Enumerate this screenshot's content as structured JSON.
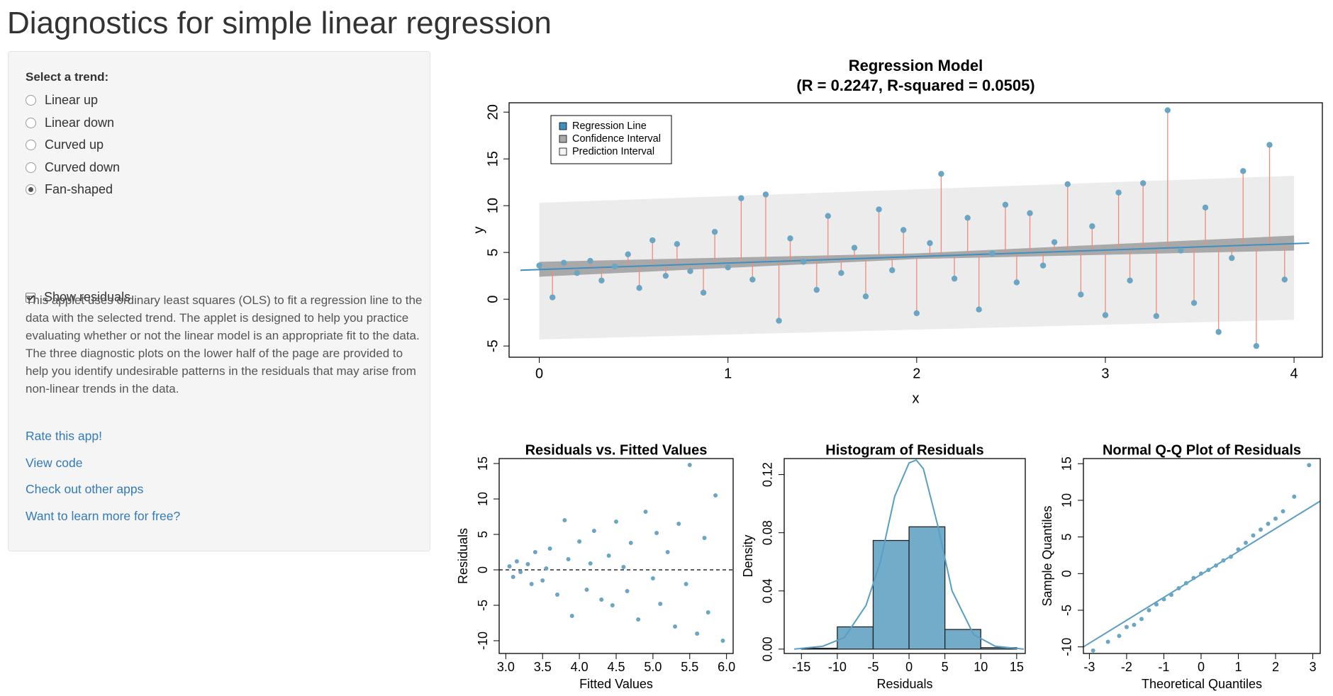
{
  "page": {
    "title": "Diagnostics for simple linear regression",
    "trend_label": "Select a trend:",
    "trends": [
      "Linear up",
      "Linear down",
      "Curved up",
      "Curved down",
      "Fan-shaped"
    ],
    "selected_trend": 4,
    "show_residuals_label": "Show residuals",
    "show_residuals": true,
    "description": "This applet uses ordinary least squares (OLS) to fit a regression line to the data with the selected trend. The applet is designed to help you practice evaluating whether or not the linear model is an appropriate fit to the data. The three diagnostic plots on the lower half of the page are provided to help you identify undesirable patterns in the residuals that may arise from non-linear trends in the data.",
    "links": [
      "Rate this app!",
      "View code",
      "Check out other apps",
      "Want to learn more for free?"
    ]
  },
  "chart_data": [
    {
      "type": "scatter",
      "title": "Regression Model",
      "subtitle": "(R = 0.2247, R-squared = 0.0505)",
      "xlabel": "x",
      "ylabel": "y",
      "xlim": [
        -0.16,
        4.15
      ],
      "ylim": [
        -6.2,
        21
      ],
      "xticks": [
        0,
        1,
        2,
        3,
        4
      ],
      "yticks": [
        -5,
        0,
        5,
        10,
        15,
        20
      ],
      "color": "#6aa6c4",
      "residual_color": "#f08a7a",
      "show_residuals": true,
      "x": [
        0.0,
        0.07,
        0.13,
        0.2,
        0.27,
        0.33,
        0.4,
        0.47,
        0.53,
        0.6,
        0.67,
        0.73,
        0.8,
        0.87,
        0.93,
        1.0,
        1.07,
        1.13,
        1.2,
        1.27,
        1.33,
        1.4,
        1.47,
        1.53,
        1.6,
        1.67,
        1.73,
        1.8,
        1.87,
        1.93,
        2.0,
        2.07,
        2.13,
        2.2,
        2.27,
        2.33,
        2.4,
        2.47,
        2.53,
        2.6,
        2.67,
        2.73,
        2.8,
        2.87,
        2.93,
        3.0,
        3.07,
        3.13,
        3.2,
        3.27,
        3.33,
        3.4,
        3.47,
        3.53,
        3.6,
        3.67,
        3.73,
        3.8,
        3.87,
        3.95
      ],
      "values": [
        3.6,
        0.2,
        3.9,
        2.8,
        4.1,
        2.0,
        3.5,
        4.8,
        1.2,
        6.3,
        2.5,
        5.9,
        3.0,
        0.7,
        7.2,
        3.4,
        10.8,
        2.1,
        11.2,
        -2.3,
        6.5,
        4.0,
        1.0,
        8.9,
        2.8,
        5.5,
        0.3,
        9.6,
        3.1,
        7.4,
        -1.5,
        6.0,
        13.4,
        2.2,
        8.7,
        -1.1,
        4.9,
        10.1,
        1.8,
        9.2,
        3.6,
        6.1,
        12.3,
        0.5,
        7.8,
        -1.7,
        11.4,
        2.0,
        12.4,
        -1.8,
        20.2,
        5.2,
        -0.4,
        9.8,
        -3.5,
        4.4,
        13.7,
        -5.0,
        16.5,
        2.1
      ],
      "line": {
        "color": "#3f8fbf",
        "x": [
          -0.1,
          4.08
        ],
        "y": [
          3.1,
          6.0
        ]
      },
      "confidence_band": {
        "color": "#a9a9a9",
        "x": [
          0,
          2,
          4
        ],
        "lower": [
          2.4,
          4.3,
          5.2
        ],
        "upper": [
          4.0,
          4.9,
          6.8
        ]
      },
      "prediction_band": {
        "color": "#ececec",
        "x": [
          0,
          4
        ],
        "lower": [
          -4.3,
          -2.2
        ],
        "upper": [
          10.3,
          13.2
        ]
      },
      "legend": [
        {
          "label": "Regression Line",
          "color": "#3f8fbf"
        },
        {
          "label": "Confidence Interval",
          "color": "#a9a9a9"
        },
        {
          "label": "Prediction Interval",
          "color": "#f4f4f4"
        }
      ]
    },
    {
      "type": "scatter",
      "title": "Residuals vs. Fitted Values",
      "xlabel": "Fitted Values",
      "ylabel": "Residuals",
      "xlim": [
        2.91,
        6.09
      ],
      "ylim": [
        -11.8,
        15.7
      ],
      "xticks": [
        {
          "value": 3,
          "label": "3.0"
        },
        3.5,
        {
          "value": 4,
          "label": "4.0"
        },
        4.5,
        {
          "value": 5,
          "label": "5.0"
        },
        5.5,
        {
          "value": 6,
          "label": "6.0"
        }
      ],
      "yticks": [
        -10,
        -5,
        0,
        5,
        10,
        15
      ],
      "color": "#6aa6c4",
      "hline": 0,
      "x": [
        3.05,
        3.1,
        3.15,
        3.2,
        3.3,
        3.35,
        3.4,
        3.5,
        3.55,
        3.6,
        3.7,
        3.8,
        3.85,
        3.9,
        4.0,
        4.1,
        4.15,
        4.2,
        4.3,
        4.4,
        4.45,
        4.5,
        4.6,
        4.65,
        4.7,
        4.8,
        4.9,
        5.0,
        5.05,
        5.1,
        5.2,
        5.3,
        5.35,
        5.45,
        5.5,
        5.6,
        5.7,
        5.75,
        5.85,
        5.95
      ],
      "values": [
        0.5,
        -1.0,
        1.2,
        -0.3,
        0.8,
        -2.0,
        2.5,
        -1.5,
        0.2,
        3.0,
        -3.5,
        7.0,
        1.5,
        -6.5,
        4.0,
        -2.8,
        0.9,
        5.5,
        -4.2,
        2.0,
        -5.0,
        6.8,
        0.4,
        -3.0,
        3.8,
        -7.0,
        8.2,
        -1.2,
        5.2,
        -4.8,
        2.5,
        -8.0,
        6.5,
        -2.0,
        14.8,
        -9.0,
        4.5,
        -6.0,
        10.5,
        -10.0
      ]
    },
    {
      "type": "histogram",
      "title": "Histogram of Residuals",
      "xlabel": "Residuals",
      "ylabel": "Density",
      "xlim": [
        -17.4,
        16.2
      ],
      "ylim": [
        -0.003,
        0.131
      ],
      "xticks": [
        -15,
        -10,
        -5,
        0,
        5,
        10,
        15
      ],
      "yticks": [
        {
          "value": 0,
          "label": "0.00"
        },
        0.04,
        0.08,
        0.12
      ],
      "color": "#73acc8",
      "bins": [
        -15,
        -10,
        -5,
        0,
        5,
        10,
        15
      ],
      "values": [
        0.0006,
        0.0153,
        0.0747,
        0.0841,
        0.0135,
        0.001
      ],
      "density": {
        "color": "#5a9ec4",
        "x": [
          -16,
          -12,
          -9,
          -6,
          -4,
          -2,
          0,
          1,
          2,
          4,
          6,
          9,
          12,
          16
        ],
        "y": [
          0.0,
          0.002,
          0.008,
          0.03,
          0.06,
          0.105,
          0.128,
          0.13,
          0.124,
          0.085,
          0.04,
          0.01,
          0.002,
          0.0
        ]
      }
    },
    {
      "type": "scatter",
      "title": "Normal Q-Q Plot of Residuals",
      "xlabel": "Theoretical Quantiles",
      "ylabel": "Sample Quantiles",
      "xlim": [
        -3.16,
        3.2
      ],
      "ylim": [
        -10.9,
        15.7
      ],
      "xticks": [
        -3,
        -2,
        -1,
        0,
        1,
        2,
        3
      ],
      "yticks": [
        -10,
        -5,
        0,
        5,
        10,
        15
      ],
      "color": "#6aa6c4",
      "x": [
        -2.9,
        -2.5,
        -2.2,
        -2.0,
        -1.8,
        -1.6,
        -1.4,
        -1.2,
        -1.0,
        -0.8,
        -0.6,
        -0.4,
        -0.2,
        0,
        0.2,
        0.4,
        0.6,
        0.8,
        1.0,
        1.2,
        1.4,
        1.6,
        1.8,
        2.0,
        2.2,
        2.5,
        2.9
      ],
      "values": [
        -10.5,
        -9.3,
        -8.5,
        -7.3,
        -7.0,
        -6.2,
        -5.0,
        -4.2,
        -3.5,
        -2.9,
        -2.0,
        -1.3,
        -0.6,
        0,
        0.5,
        1.1,
        1.8,
        2.3,
        3.3,
        4.2,
        5.2,
        6.0,
        6.8,
        7.5,
        8.5,
        10.5,
        14.8
      ],
      "line": {
        "color": "#5a9ec4",
        "x": [
          -3.16,
          3.2
        ],
        "y": [
          -10,
          9.9
        ]
      }
    }
  ]
}
